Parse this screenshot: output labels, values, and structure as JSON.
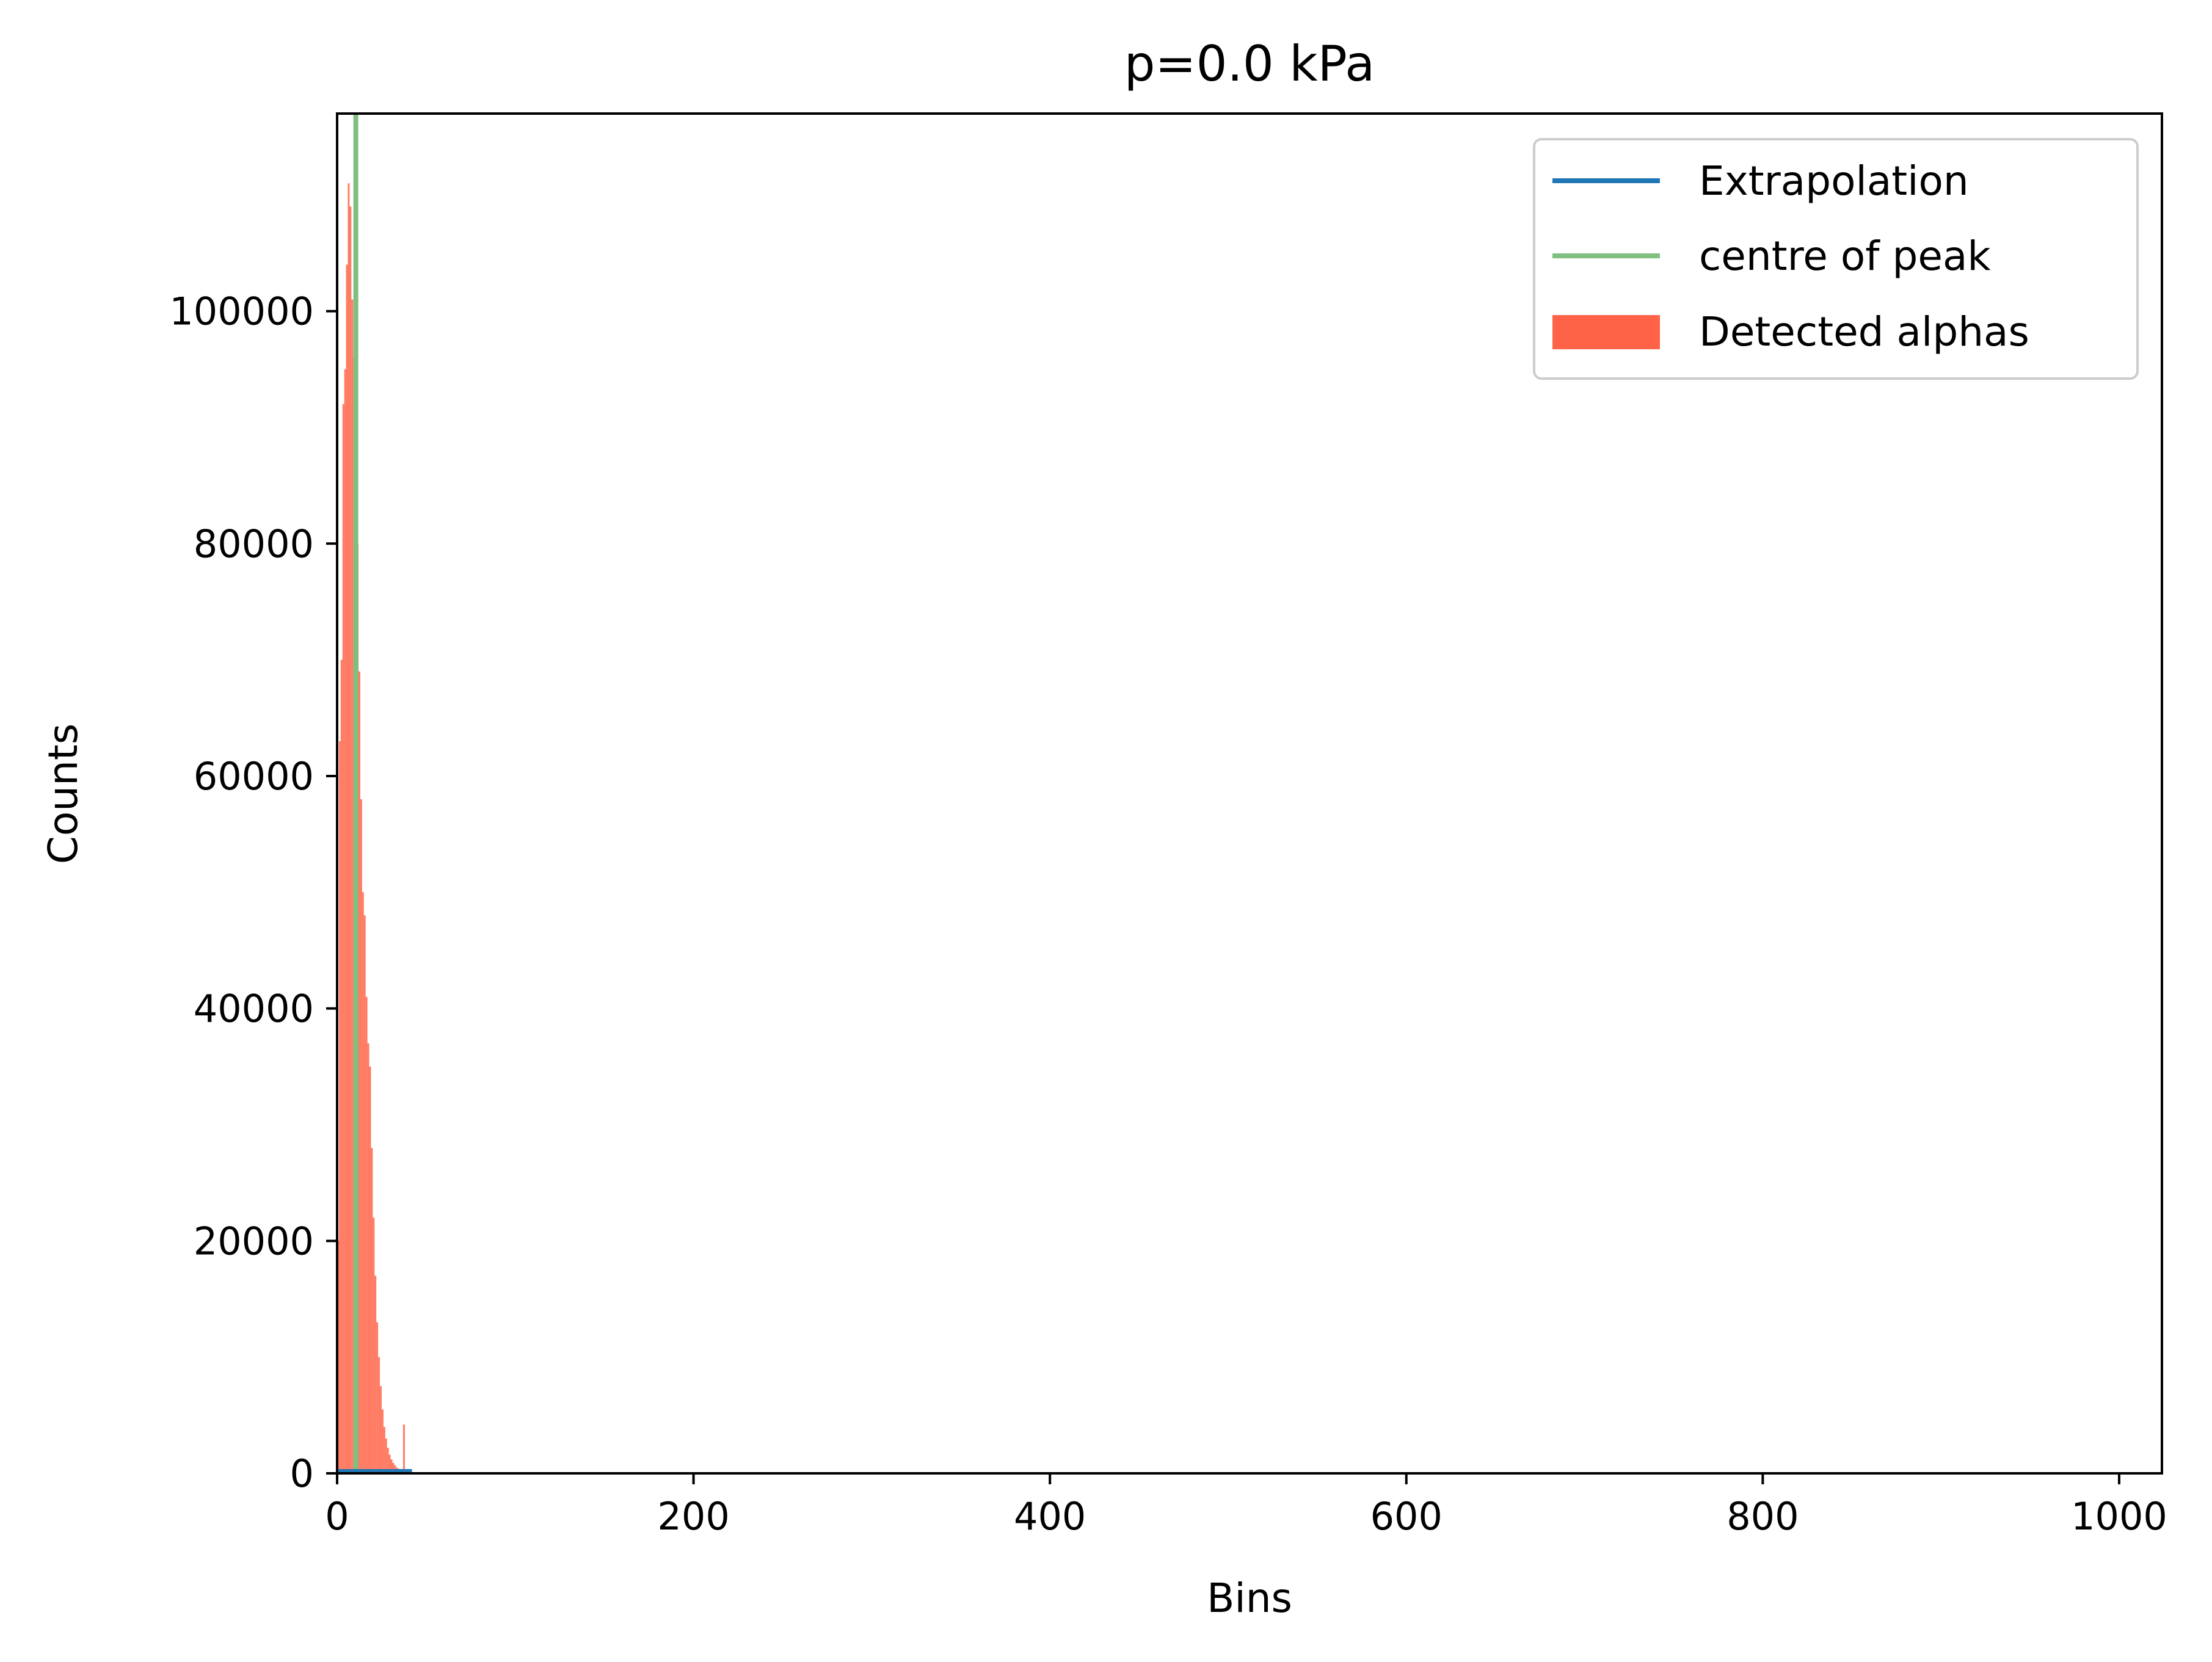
{
  "chart_data": {
    "type": "bar",
    "title": "p=0.0 kPa",
    "xlabel": "Bins",
    "ylabel": "Counts",
    "xlim": [
      0,
      1024
    ],
    "ylim": [
      0,
      117000
    ],
    "xticks": [
      0,
      200,
      400,
      600,
      800,
      1000
    ],
    "xtick_labels": [
      "0",
      "200",
      "400",
      "600",
      "800",
      "1000"
    ],
    "yticks": [
      0,
      20000,
      40000,
      60000,
      80000,
      100000
    ],
    "ytick_labels": [
      "0",
      "20000",
      "40000",
      "60000",
      "80000",
      "100000"
    ],
    "grid": false,
    "legend_position": "top-right",
    "colors": {
      "extrapolation": "#1f77b4",
      "centre": "#7fbf7f",
      "alphas": "#ff6347",
      "axis": "#000000"
    },
    "series": [
      {
        "name": "Detected alphas",
        "kind": "bar",
        "x": [
          0,
          1,
          2,
          3,
          4,
          5,
          6,
          7,
          8,
          9,
          10,
          11,
          12,
          13,
          14,
          15,
          16,
          17,
          18,
          19,
          20,
          21,
          22,
          23,
          24,
          25,
          26,
          27,
          28,
          29,
          30,
          31,
          32,
          33,
          34,
          35,
          36,
          37,
          38,
          39,
          40,
          41
        ],
        "values": [
          20000,
          63000,
          70000,
          92000,
          95000,
          104000,
          111000,
          109000,
          101000,
          96000,
          92000,
          80000,
          69000,
          58000,
          50000,
          48000,
          41000,
          37000,
          35000,
          28000,
          22000,
          17000,
          13000,
          10000,
          7500,
          5500,
          4000,
          3000,
          2200,
          1600,
          1200,
          900,
          700,
          500,
          400,
          300,
          300,
          4200,
          300,
          200,
          100,
          50
        ]
      },
      {
        "name": "Extrapolation",
        "kind": "line",
        "x": [
          0,
          10,
          20,
          30,
          38,
          40,
          42
        ],
        "values": [
          0,
          0,
          0,
          0,
          0,
          0,
          0
        ]
      },
      {
        "name": "centre of peak",
        "kind": "vline",
        "x": [
          10
        ],
        "values": [
          117000
        ]
      }
    ]
  }
}
